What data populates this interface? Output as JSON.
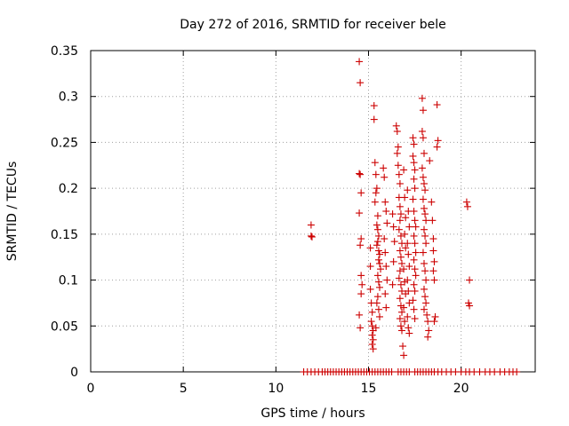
{
  "chart_data": {
    "type": "scatter",
    "title": "Day 272 of 2016, SRMTID for receiver bele",
    "xlabel": "GPS time / hours",
    "ylabel": "SRMTID / TECUs",
    "xlim": [
      0,
      24
    ],
    "ylim": [
      0,
      0.35
    ],
    "xticks": [
      0,
      5,
      10,
      15,
      20
    ],
    "xtick_labels": [
      "0",
      "5",
      "10",
      "15",
      "20"
    ],
    "yticks": [
      0,
      0.05,
      0.1,
      0.15,
      0.2,
      0.25,
      0.3,
      0.35
    ],
    "ytick_labels": [
      "0",
      "0.05",
      "0.1",
      "0.15",
      "0.2",
      "0.25",
      "0.3",
      "0.35"
    ],
    "grid": true,
    "marker": "+",
    "color": "#cc0000",
    "series": [
      {
        "name": "SRMTID",
        "points": [
          [
            11.9,
            0.16
          ],
          [
            11.9,
            0.148
          ],
          [
            11.95,
            0.147
          ],
          [
            14.5,
            0.338
          ],
          [
            14.55,
            0.315
          ],
          [
            14.5,
            0.216
          ],
          [
            14.55,
            0.215
          ],
          [
            14.6,
            0.195
          ],
          [
            14.5,
            0.173
          ],
          [
            14.55,
            0.138
          ],
          [
            14.6,
            0.145
          ],
          [
            14.6,
            0.105
          ],
          [
            14.65,
            0.095
          ],
          [
            14.6,
            0.085
          ],
          [
            14.5,
            0.062
          ],
          [
            14.55,
            0.048
          ],
          [
            15.1,
            0.135
          ],
          [
            15.1,
            0.115
          ],
          [
            15.1,
            0.09
          ],
          [
            15.15,
            0.075
          ],
          [
            15.2,
            0.065
          ],
          [
            15.15,
            0.055
          ],
          [
            15.2,
            0.05
          ],
          [
            15.25,
            0.045
          ],
          [
            15.2,
            0.04
          ],
          [
            15.25,
            0.035
          ],
          [
            15.2,
            0.03
          ],
          [
            15.25,
            0.025
          ],
          [
            15.3,
            0.29
          ],
          [
            15.3,
            0.275
          ],
          [
            15.35,
            0.228
          ],
          [
            15.4,
            0.215
          ],
          [
            15.45,
            0.2
          ],
          [
            15.4,
            0.195
          ],
          [
            15.35,
            0.185
          ],
          [
            15.5,
            0.17
          ],
          [
            15.45,
            0.16
          ],
          [
            15.5,
            0.155
          ],
          [
            15.55,
            0.148
          ],
          [
            15.5,
            0.142
          ],
          [
            15.45,
            0.138
          ],
          [
            15.55,
            0.132
          ],
          [
            15.6,
            0.128
          ],
          [
            15.55,
            0.122
          ],
          [
            15.6,
            0.118
          ],
          [
            15.65,
            0.112
          ],
          [
            15.5,
            0.105
          ],
          [
            15.55,
            0.098
          ],
          [
            15.6,
            0.092
          ],
          [
            15.5,
            0.082
          ],
          [
            15.45,
            0.075
          ],
          [
            15.55,
            0.068
          ],
          [
            15.6,
            0.06
          ],
          [
            15.4,
            0.048
          ],
          [
            15.8,
            0.222
          ],
          [
            15.85,
            0.212
          ],
          [
            15.9,
            0.185
          ],
          [
            15.95,
            0.175
          ],
          [
            16.0,
            0.162
          ],
          [
            15.85,
            0.145
          ],
          [
            15.9,
            0.13
          ],
          [
            15.95,
            0.115
          ],
          [
            16.0,
            0.1
          ],
          [
            15.9,
            0.085
          ],
          [
            15.95,
            0.07
          ],
          [
            16.3,
            0.172
          ],
          [
            16.35,
            0.158
          ],
          [
            16.4,
            0.142
          ],
          [
            16.35,
            0.12
          ],
          [
            16.3,
            0.095
          ],
          [
            16.5,
            0.268
          ],
          [
            16.55,
            0.262
          ],
          [
            16.6,
            0.245
          ],
          [
            16.55,
            0.238
          ],
          [
            16.6,
            0.225
          ],
          [
            16.65,
            0.215
          ],
          [
            16.7,
            0.205
          ],
          [
            16.65,
            0.19
          ],
          [
            16.7,
            0.18
          ],
          [
            16.75,
            0.172
          ],
          [
            16.7,
            0.165
          ],
          [
            16.65,
            0.155
          ],
          [
            16.75,
            0.148
          ],
          [
            16.8,
            0.14
          ],
          [
            16.7,
            0.132
          ],
          [
            16.75,
            0.125
          ],
          [
            16.8,
            0.118
          ],
          [
            16.7,
            0.11
          ],
          [
            16.65,
            0.102
          ],
          [
            16.75,
            0.095
          ],
          [
            16.8,
            0.088
          ],
          [
            16.7,
            0.08
          ],
          [
            16.75,
            0.072
          ],
          [
            16.8,
            0.065
          ],
          [
            16.7,
            0.058
          ],
          [
            16.75,
            0.05
          ],
          [
            16.8,
            0.045
          ],
          [
            16.9,
            0.22
          ],
          [
            16.95,
            0.19
          ],
          [
            17.0,
            0.168
          ],
          [
            16.95,
            0.15
          ],
          [
            17.0,
            0.135
          ],
          [
            16.9,
            0.112
          ],
          [
            16.95,
            0.098
          ],
          [
            17.0,
            0.085
          ],
          [
            16.9,
            0.07
          ],
          [
            16.95,
            0.055
          ],
          [
            16.85,
            0.028
          ],
          [
            16.9,
            0.018
          ],
          [
            17.1,
            0.198
          ],
          [
            17.15,
            0.175
          ],
          [
            17.2,
            0.158
          ],
          [
            17.1,
            0.14
          ],
          [
            17.15,
            0.128
          ],
          [
            17.2,
            0.115
          ],
          [
            17.1,
            0.1
          ],
          [
            17.15,
            0.088
          ],
          [
            17.2,
            0.075
          ],
          [
            17.1,
            0.06
          ],
          [
            17.15,
            0.048
          ],
          [
            17.2,
            0.042
          ],
          [
            17.4,
            0.255
          ],
          [
            17.45,
            0.248
          ],
          [
            17.4,
            0.235
          ],
          [
            17.45,
            0.228
          ],
          [
            17.5,
            0.22
          ],
          [
            17.45,
            0.21
          ],
          [
            17.5,
            0.2
          ],
          [
            17.4,
            0.188
          ],
          [
            17.45,
            0.175
          ],
          [
            17.5,
            0.165
          ],
          [
            17.55,
            0.158
          ],
          [
            17.45,
            0.148
          ],
          [
            17.5,
            0.14
          ],
          [
            17.55,
            0.13
          ],
          [
            17.45,
            0.122
          ],
          [
            17.5,
            0.112
          ],
          [
            17.55,
            0.105
          ],
          [
            17.45,
            0.095
          ],
          [
            17.5,
            0.088
          ],
          [
            17.4,
            0.078
          ],
          [
            17.45,
            0.068
          ],
          [
            17.5,
            0.058
          ],
          [
            17.9,
            0.298
          ],
          [
            17.95,
            0.285
          ],
          [
            17.9,
            0.262
          ],
          [
            17.95,
            0.255
          ],
          [
            18.0,
            0.238
          ],
          [
            17.9,
            0.222
          ],
          [
            17.95,
            0.212
          ],
          [
            18.0,
            0.205
          ],
          [
            18.05,
            0.198
          ],
          [
            17.95,
            0.188
          ],
          [
            18.0,
            0.178
          ],
          [
            18.05,
            0.172
          ],
          [
            18.1,
            0.165
          ],
          [
            18.0,
            0.155
          ],
          [
            18.05,
            0.148
          ],
          [
            18.1,
            0.14
          ],
          [
            17.95,
            0.13
          ],
          [
            18.0,
            0.118
          ],
          [
            18.05,
            0.11
          ],
          [
            18.1,
            0.1
          ],
          [
            18.0,
            0.09
          ],
          [
            18.05,
            0.082
          ],
          [
            18.1,
            0.075
          ],
          [
            18.0,
            0.068
          ],
          [
            18.15,
            0.062
          ],
          [
            18.2,
            0.055
          ],
          [
            18.25,
            0.045
          ],
          [
            18.2,
            0.038
          ],
          [
            18.3,
            0.23
          ],
          [
            18.4,
            0.185
          ],
          [
            18.45,
            0.165
          ],
          [
            18.5,
            0.145
          ],
          [
            18.5,
            0.132
          ],
          [
            18.55,
            0.12
          ],
          [
            18.5,
            0.11
          ],
          [
            18.55,
            0.1
          ],
          [
            18.6,
            0.06
          ],
          [
            18.55,
            0.055
          ],
          [
            18.7,
            0.291
          ],
          [
            18.75,
            0.252
          ],
          [
            18.7,
            0.245
          ],
          [
            20.3,
            0.185
          ],
          [
            20.35,
            0.18
          ],
          [
            20.45,
            0.1
          ],
          [
            20.4,
            0.075
          ],
          [
            20.45,
            0.072
          ],
          [
            11.5,
            0
          ],
          [
            11.7,
            0
          ],
          [
            11.9,
            0
          ],
          [
            12.1,
            0
          ],
          [
            12.3,
            0
          ],
          [
            12.5,
            0
          ],
          [
            12.65,
            0
          ],
          [
            12.8,
            0
          ],
          [
            12.95,
            0
          ],
          [
            13.1,
            0
          ],
          [
            13.25,
            0
          ],
          [
            13.4,
            0
          ],
          [
            13.55,
            0
          ],
          [
            13.7,
            0
          ],
          [
            13.85,
            0
          ],
          [
            14.0,
            0
          ],
          [
            14.15,
            0
          ],
          [
            14.3,
            0
          ],
          [
            14.45,
            0
          ],
          [
            14.6,
            0
          ],
          [
            14.75,
            0
          ],
          [
            14.9,
            0
          ],
          [
            15.05,
            0
          ],
          [
            15.2,
            0
          ],
          [
            15.35,
            0
          ],
          [
            15.5,
            0
          ],
          [
            15.65,
            0
          ],
          [
            15.8,
            0
          ],
          [
            15.95,
            0
          ],
          [
            16.1,
            0
          ],
          [
            16.25,
            0
          ],
          [
            16.6,
            0
          ],
          [
            16.75,
            0
          ],
          [
            16.9,
            0
          ],
          [
            17.05,
            0
          ],
          [
            17.2,
            0
          ],
          [
            17.5,
            0
          ],
          [
            17.65,
            0
          ],
          [
            17.8,
            0
          ],
          [
            17.95,
            0
          ],
          [
            18.1,
            0
          ],
          [
            18.25,
            0
          ],
          [
            18.4,
            0
          ],
          [
            18.55,
            0
          ],
          [
            18.75,
            0
          ],
          [
            18.95,
            0
          ],
          [
            19.2,
            0
          ],
          [
            19.45,
            0
          ],
          [
            19.7,
            0
          ],
          [
            20.0,
            0
          ],
          [
            20.25,
            0
          ],
          [
            20.45,
            0
          ],
          [
            20.7,
            0
          ],
          [
            21.0,
            0
          ],
          [
            21.3,
            0
          ],
          [
            21.55,
            0
          ],
          [
            21.8,
            0
          ],
          [
            22.1,
            0
          ],
          [
            22.35,
            0
          ],
          [
            22.6,
            0
          ],
          [
            22.8,
            0
          ],
          [
            23.0,
            0
          ]
        ]
      }
    ]
  }
}
